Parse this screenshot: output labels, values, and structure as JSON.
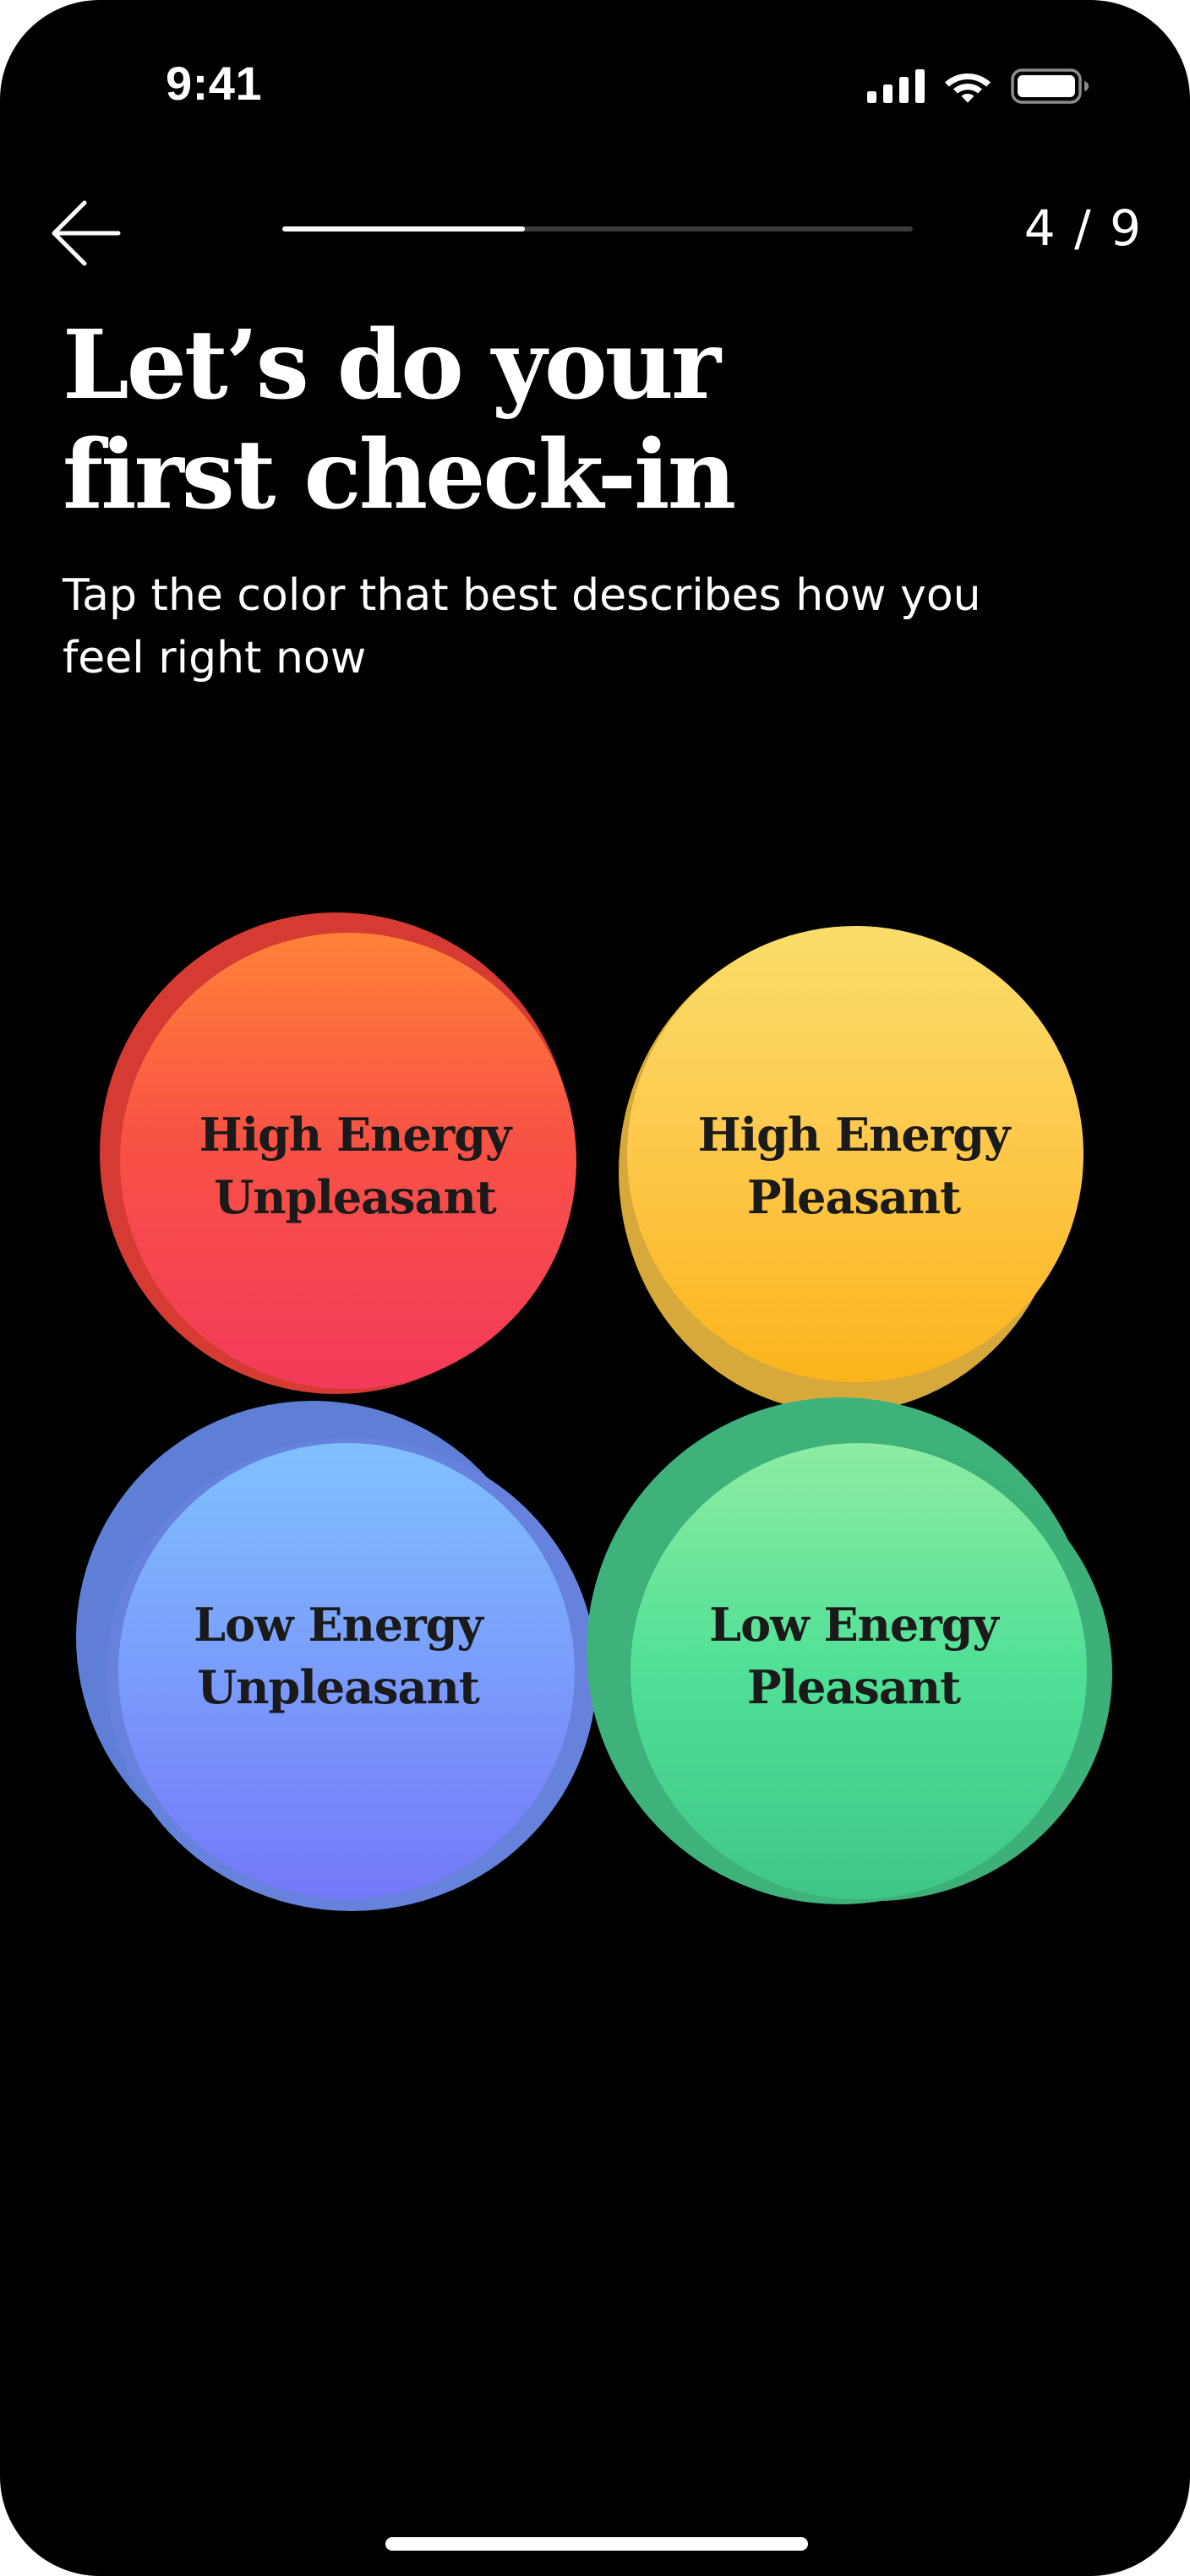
{
  "status_bar": {
    "time": "9:41",
    "icons": [
      "cellular-signal-icon",
      "wifi-icon",
      "battery-icon"
    ]
  },
  "nav": {
    "back_icon": "arrow-left-icon",
    "progress_fraction": 0.3846,
    "step_counter": "4 / 9"
  },
  "heading": {
    "title_line1": "Let’s do your",
    "title_line2": "first check-in",
    "subtitle": "Tap the color that best describes how you feel right now"
  },
  "moods": {
    "high_unpleasant": {
      "line1": "High Energy",
      "line2": "Unpleasant",
      "color": "#f5473f"
    },
    "high_pleasant": {
      "line1": "High Energy",
      "line2": "Pleasant",
      "color": "#fdc446"
    },
    "low_unpleasant": {
      "line1": "Low Energy",
      "line2": "Unpleasant",
      "color": "#7a9cfb"
    },
    "low_pleasant": {
      "line1": "Low Energy",
      "line2": "Pleasant",
      "color": "#4ee197"
    }
  },
  "colors": {
    "background": "#000000",
    "text": "#ffffff",
    "progress_track": "#3a3a3a"
  }
}
